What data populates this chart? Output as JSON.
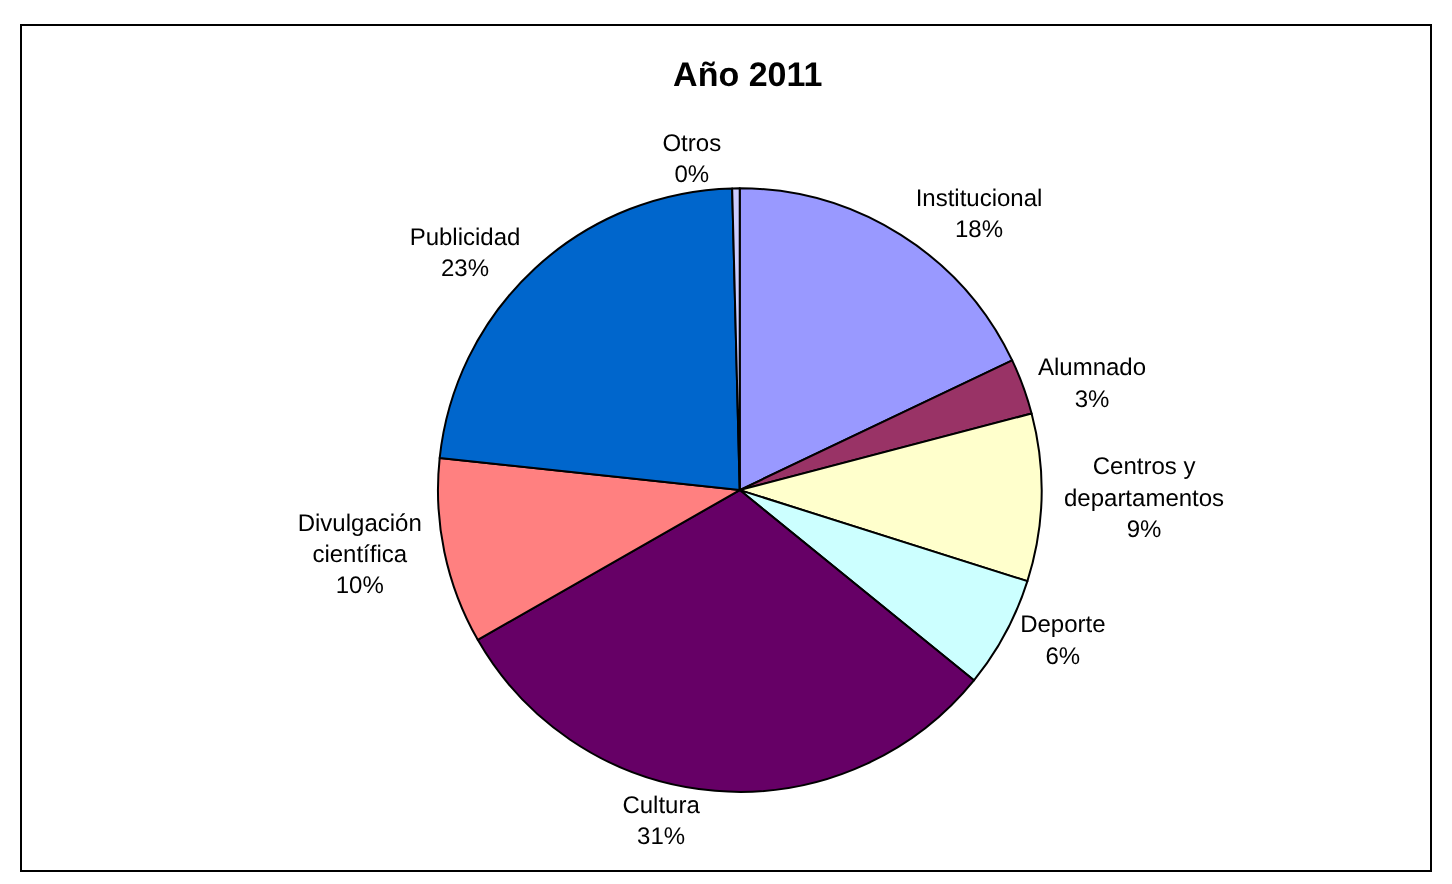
{
  "chart_data": {
    "type": "pie",
    "title": "Año 2011",
    "categories": [
      "Institucional",
      "Alumnado",
      "Centros y departamentos",
      "Deporte",
      "Cultura",
      "Divulgación científica",
      "Publicidad",
      "Otros"
    ],
    "values": [
      18,
      3,
      9,
      6,
      31,
      10,
      23,
      0.4
    ],
    "value_labels": [
      "18%",
      "3%",
      "9%",
      "6%",
      "31%",
      "10%",
      "23%",
      "0%"
    ],
    "colors": [
      "#9999ff",
      "#993366",
      "#ffffcc",
      "#ccffff",
      "#660066",
      "#ff8080",
      "#0066cc",
      "#ccccff"
    ],
    "legend": false
  }
}
